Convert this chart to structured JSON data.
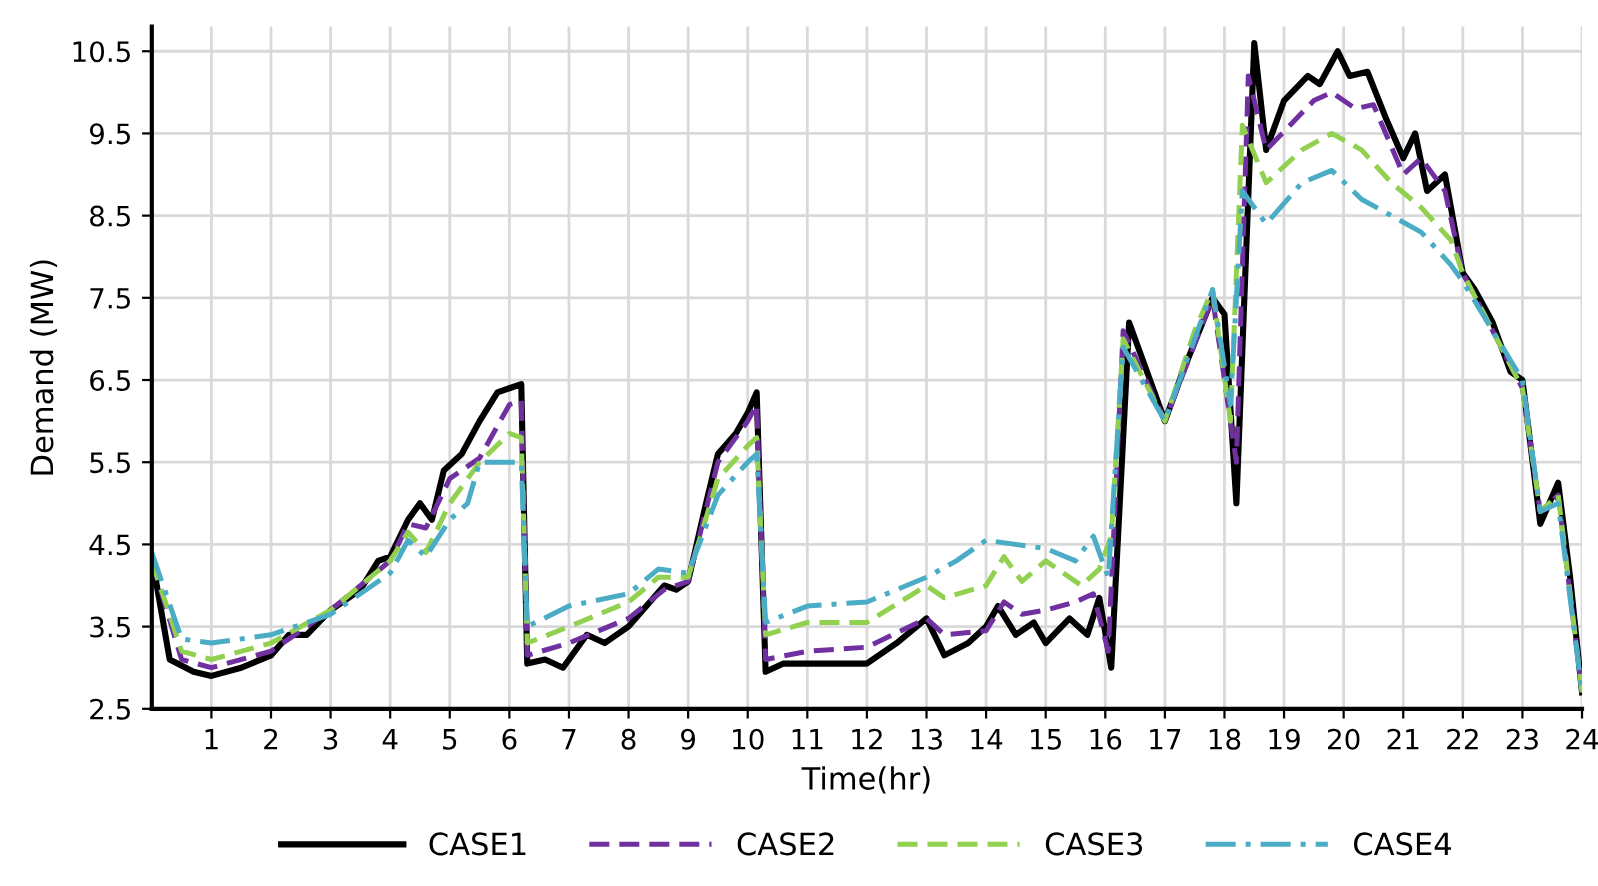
{
  "chart_data": {
    "type": "line",
    "xlabel": "Time(hr)",
    "ylabel": "Demand (MW)",
    "xlim": [
      0,
      24
    ],
    "xticks": [
      1,
      2,
      3,
      4,
      5,
      6,
      7,
      8,
      9,
      10,
      11,
      12,
      13,
      14,
      15,
      16,
      17,
      18,
      19,
      20,
      21,
      22,
      23,
      24
    ],
    "ylim": [
      2.5,
      10.8
    ],
    "yticks": [
      2.5,
      3.5,
      4.5,
      5.5,
      6.5,
      7.5,
      8.5,
      9.5,
      10.5
    ],
    "grid": true,
    "legend": "bottom",
    "marker": "none",
    "series": [
      {
        "name": "CASE1",
        "color": "#000000",
        "line_style": "solid",
        "x": [
          0,
          0.3,
          0.7,
          1,
          1.5,
          2,
          2.3,
          2.6,
          3,
          3.5,
          3.8,
          4,
          4.3,
          4.5,
          4.7,
          4.9,
          5.2,
          5.5,
          5.8,
          6,
          6.2,
          6.3,
          6.6,
          6.9,
          7.3,
          7.6,
          8,
          8.6,
          8.8,
          9,
          9.3,
          9.5,
          9.8,
          10,
          10.15,
          10.3,
          10.6,
          11,
          12,
          12.5,
          13,
          13.3,
          13.7,
          14,
          14.2,
          14.5,
          14.8,
          15,
          15.4,
          15.7,
          15.9,
          16.1,
          16.4,
          16.7,
          17,
          17.3,
          17.8,
          18,
          18.2,
          18.5,
          18.7,
          19,
          19.4,
          19.6,
          19.9,
          20.1,
          20.4,
          20.7,
          21,
          21.2,
          21.4,
          21.7,
          22,
          22.2,
          22.5,
          22.8,
          23,
          23.3,
          23.6,
          23.8,
          24
        ],
        "values": [
          4.35,
          3.1,
          2.95,
          2.9,
          3.0,
          3.15,
          3.4,
          3.4,
          3.7,
          3.95,
          4.3,
          4.35,
          4.8,
          5.0,
          4.8,
          5.4,
          5.6,
          6.0,
          6.35,
          6.4,
          6.45,
          3.05,
          3.1,
          3.0,
          3.4,
          3.3,
          3.5,
          4.0,
          3.95,
          4.05,
          5.0,
          5.6,
          5.85,
          6.1,
          6.35,
          2.95,
          3.05,
          3.05,
          3.05,
          3.3,
          3.6,
          3.15,
          3.3,
          3.5,
          3.75,
          3.4,
          3.55,
          3.3,
          3.6,
          3.4,
          3.85,
          3.0,
          7.2,
          6.6,
          6.0,
          6.6,
          7.5,
          7.3,
          5.0,
          10.6,
          9.3,
          9.9,
          10.2,
          10.1,
          10.5,
          10.2,
          10.25,
          9.7,
          9.2,
          9.5,
          8.8,
          9.0,
          7.8,
          7.6,
          7.2,
          6.6,
          6.5,
          4.75,
          5.25,
          4.1,
          2.7
        ]
      },
      {
        "name": "CASE2",
        "color": "#7030a0",
        "line_style": "dashed",
        "x": [
          0,
          0.5,
          1,
          2,
          3,
          4,
          4.3,
          4.6,
          5,
          5.5,
          6,
          6.2,
          6.3,
          7,
          8,
          8.6,
          9,
          9.5,
          10,
          10.15,
          10.3,
          11,
          12,
          13,
          13.3,
          14,
          14.3,
          14.6,
          15,
          15.5,
          15.8,
          16.05,
          16.3,
          17,
          17.8,
          18.2,
          18.4,
          18.7,
          19.5,
          19.8,
          20.2,
          20.5,
          21,
          21.3,
          21.7,
          22,
          23,
          23.3,
          23.6,
          24
        ],
        "values": [
          4.3,
          3.1,
          3.0,
          3.2,
          3.7,
          4.3,
          4.75,
          4.7,
          5.3,
          5.55,
          6.2,
          6.25,
          3.15,
          3.3,
          3.6,
          3.95,
          4.05,
          5.5,
          6.0,
          6.2,
          3.1,
          3.2,
          3.25,
          3.6,
          3.4,
          3.45,
          3.8,
          3.65,
          3.7,
          3.8,
          3.9,
          3.2,
          7.1,
          6.0,
          7.5,
          5.5,
          10.2,
          9.3,
          9.9,
          10.0,
          9.8,
          9.85,
          9.0,
          9.2,
          8.8,
          7.8,
          6.4,
          4.9,
          5.1,
          2.7
        ]
      },
      {
        "name": "CASE3",
        "color": "#92d050",
        "line_style": "dashed",
        "x": [
          0,
          0.5,
          1,
          2,
          3,
          4,
          4.3,
          4.6,
          5,
          5.5,
          6,
          6.2,
          6.3,
          7,
          8,
          8.5,
          9,
          9.5,
          10,
          10.15,
          10.3,
          11,
          12,
          13,
          13.3,
          14,
          14.3,
          14.6,
          15,
          15.6,
          15.9,
          16.1,
          16.3,
          17,
          17.5,
          17.8,
          18.1,
          18.3,
          18.7,
          19.3,
          19.8,
          20.3,
          20.8,
          21.3,
          21.8,
          22,
          23,
          23.3,
          23.6,
          24
        ],
        "values": [
          4.3,
          3.2,
          3.1,
          3.3,
          3.7,
          4.3,
          4.65,
          4.4,
          5.0,
          5.5,
          5.85,
          5.8,
          3.3,
          3.5,
          3.8,
          4.1,
          4.1,
          5.3,
          5.7,
          5.8,
          3.4,
          3.55,
          3.55,
          4.0,
          3.85,
          4.0,
          4.35,
          4.05,
          4.3,
          4.0,
          4.2,
          4.6,
          7.0,
          6.0,
          7.1,
          7.6,
          6.0,
          9.6,
          8.9,
          9.3,
          9.5,
          9.3,
          8.9,
          8.6,
          8.2,
          7.8,
          6.4,
          4.9,
          5.1,
          2.7
        ]
      },
      {
        "name": "CASE4",
        "color": "#4bacc6",
        "line_style": "dashdot",
        "x": [
          0,
          0.5,
          1,
          2,
          3,
          4,
          4.3,
          4.6,
          5,
          5.3,
          5.5,
          6,
          6.2,
          6.3,
          7,
          8,
          8.5,
          9,
          9.5,
          10,
          10.15,
          10.3,
          11,
          12,
          13,
          13.5,
          14,
          15,
          15.5,
          15.8,
          16.05,
          16.3,
          17,
          17.8,
          18.1,
          18.3,
          18.7,
          19.3,
          19.8,
          20.3,
          20.8,
          21.3,
          21.8,
          22,
          23,
          23.3,
          23.6,
          24
        ],
        "values": [
          4.4,
          3.35,
          3.3,
          3.4,
          3.65,
          4.15,
          4.55,
          4.35,
          4.8,
          5.0,
          5.5,
          5.5,
          5.5,
          3.5,
          3.75,
          3.9,
          4.2,
          4.15,
          5.1,
          5.5,
          5.6,
          3.55,
          3.75,
          3.8,
          4.1,
          4.3,
          4.55,
          4.45,
          4.3,
          4.6,
          4.1,
          6.9,
          6.0,
          7.6,
          6.2,
          8.8,
          8.4,
          8.9,
          9.05,
          8.7,
          8.5,
          8.3,
          7.9,
          7.7,
          6.5,
          4.9,
          5.0,
          2.7
        ]
      }
    ]
  }
}
